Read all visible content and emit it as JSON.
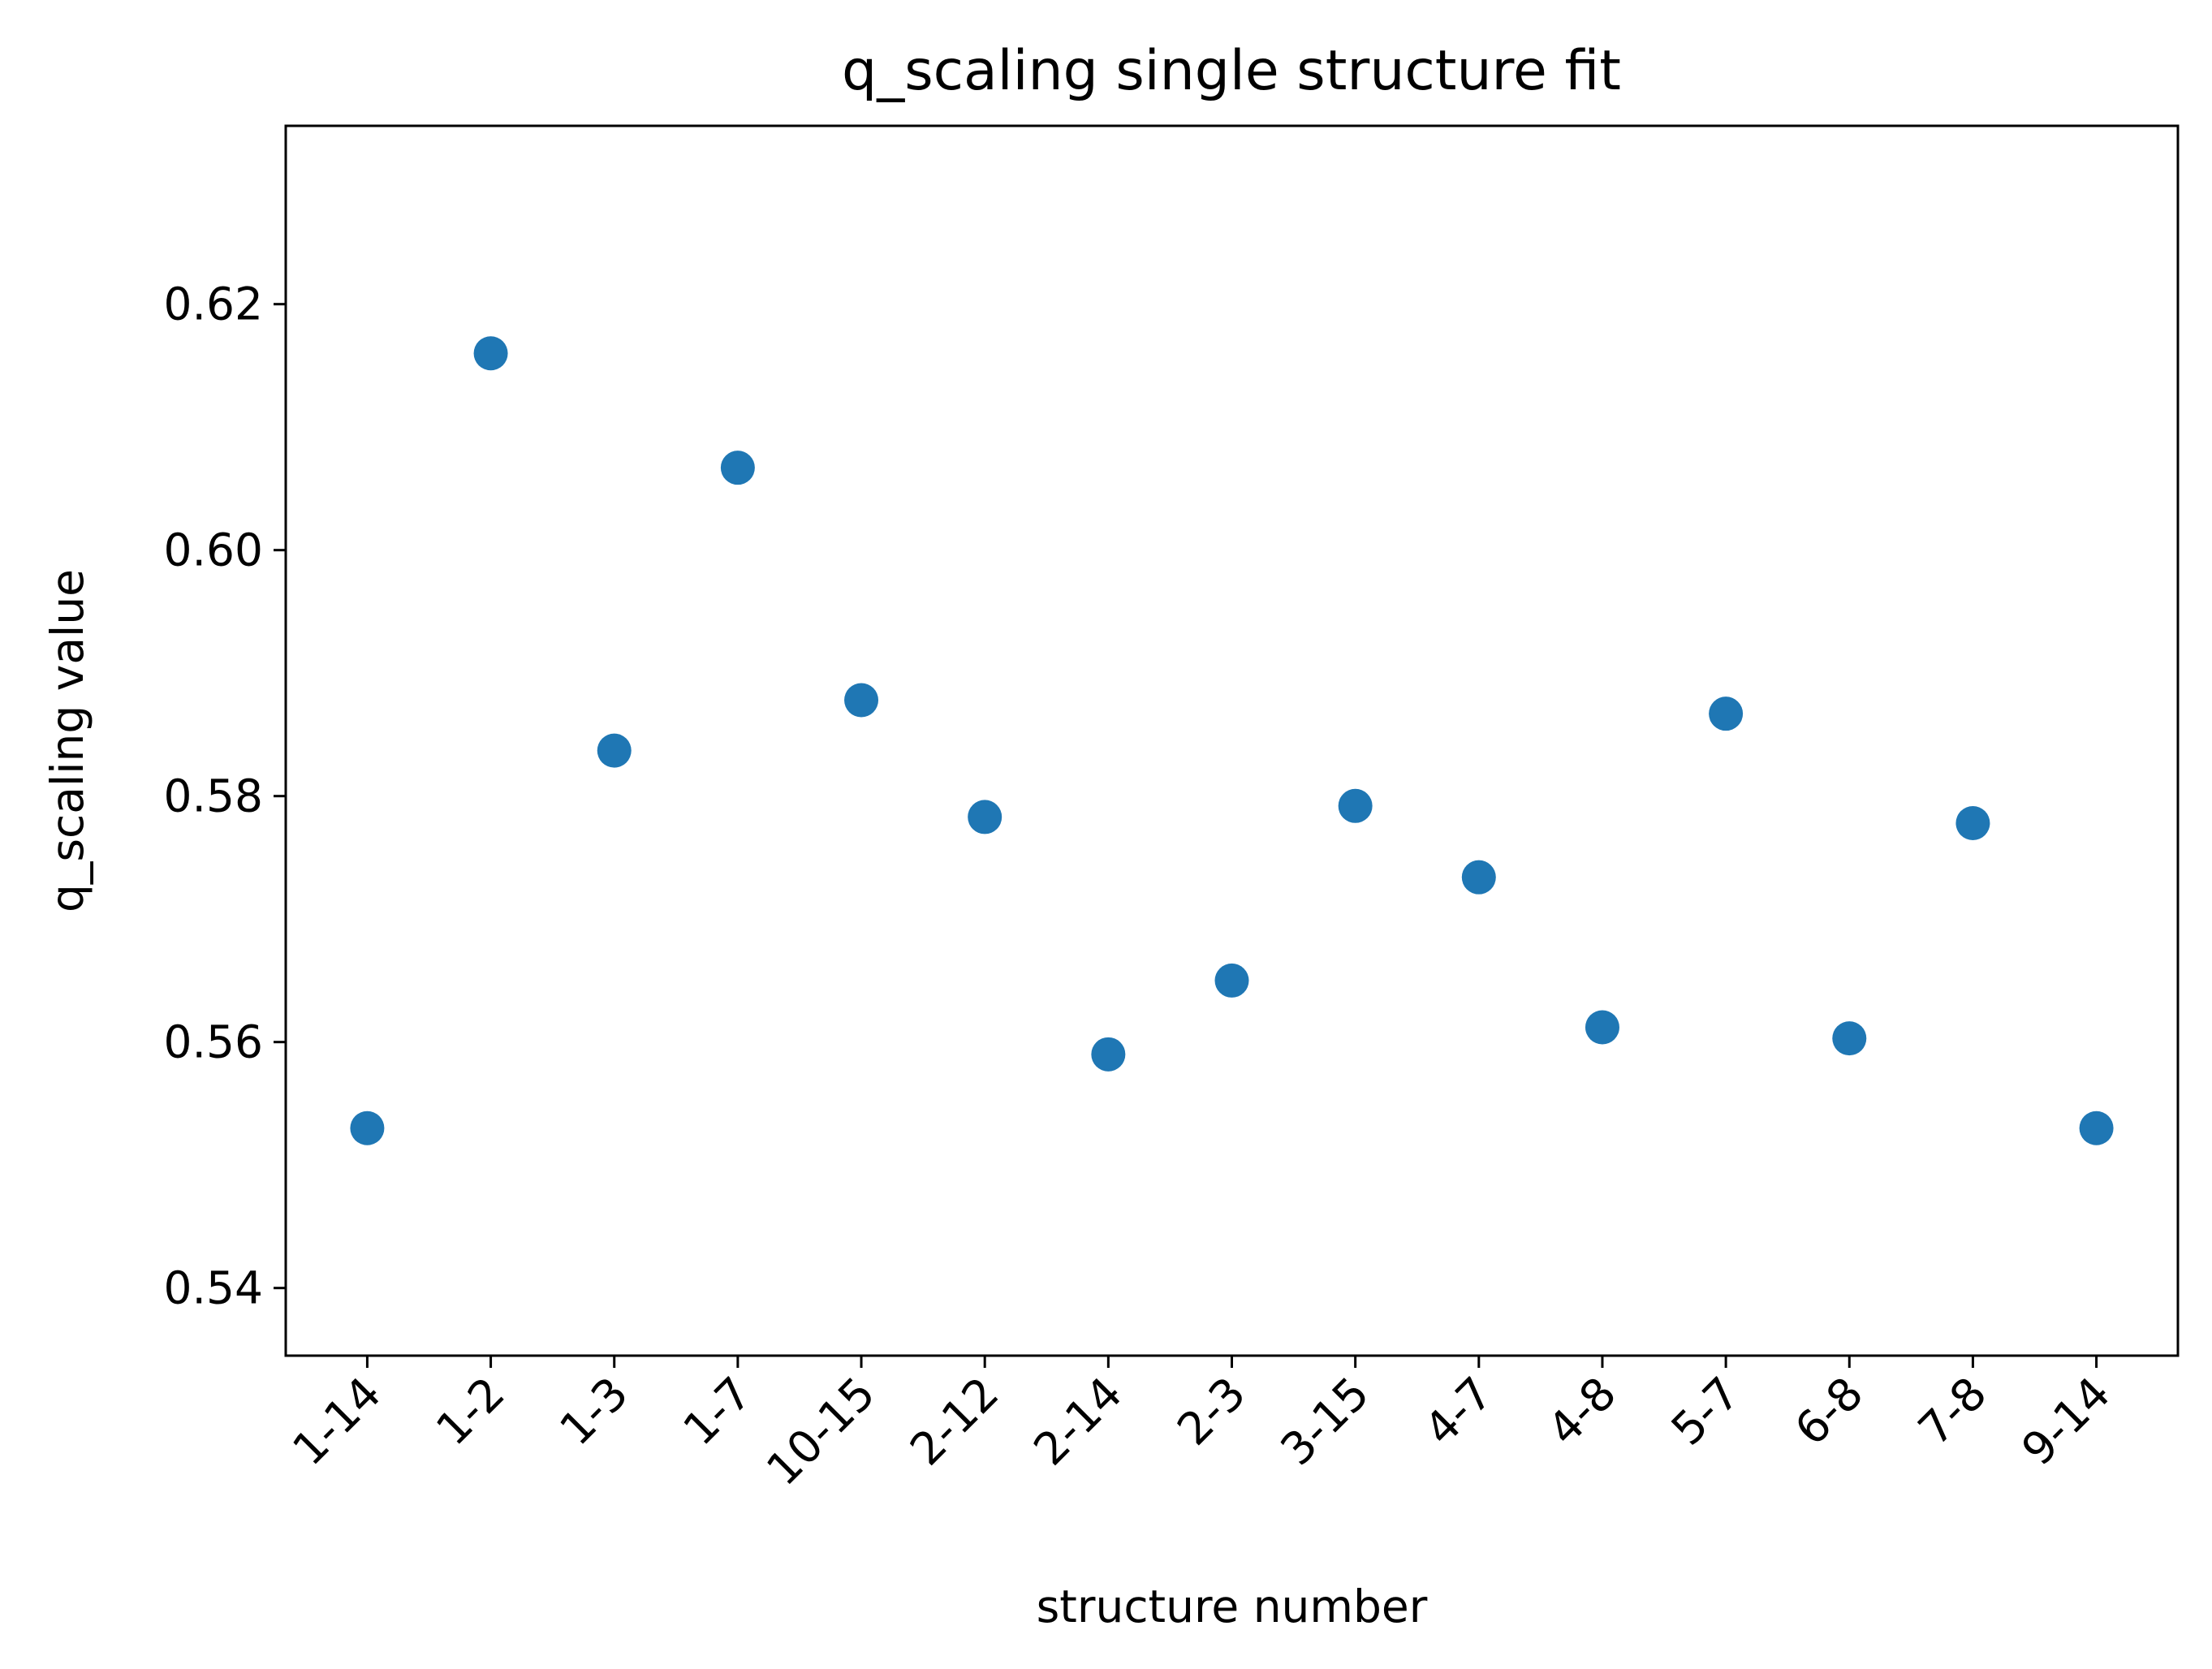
{
  "chart_data": {
    "type": "scatter",
    "title": "q_scaling single structure fit",
    "xlabel": "structure number",
    "ylabel": "q_scaling value",
    "categories": [
      "1-14",
      "1-2",
      "1-3",
      "1-7",
      "10-15",
      "2-12",
      "2-14",
      "2-3",
      "3-15",
      "4-7",
      "4-8",
      "5-7",
      "6-8",
      "7-8",
      "9-14"
    ],
    "values": [
      0.553,
      0.616,
      0.5837,
      0.6067,
      0.5878,
      0.5783,
      0.559,
      0.565,
      0.5792,
      0.5734,
      0.5612,
      0.5867,
      0.5603,
      0.5778,
      0.553
    ],
    "ylim": [
      0.5345,
      0.6345
    ],
    "yticks": [
      0.54,
      0.56,
      0.58,
      0.6,
      0.62
    ],
    "ytick_labels": [
      "0.54",
      "0.56",
      "0.58",
      "0.60",
      "0.62"
    ],
    "grid": false,
    "colors": {
      "marker": "#1f77b4",
      "axis": "#000000",
      "background": "#ffffff"
    }
  }
}
